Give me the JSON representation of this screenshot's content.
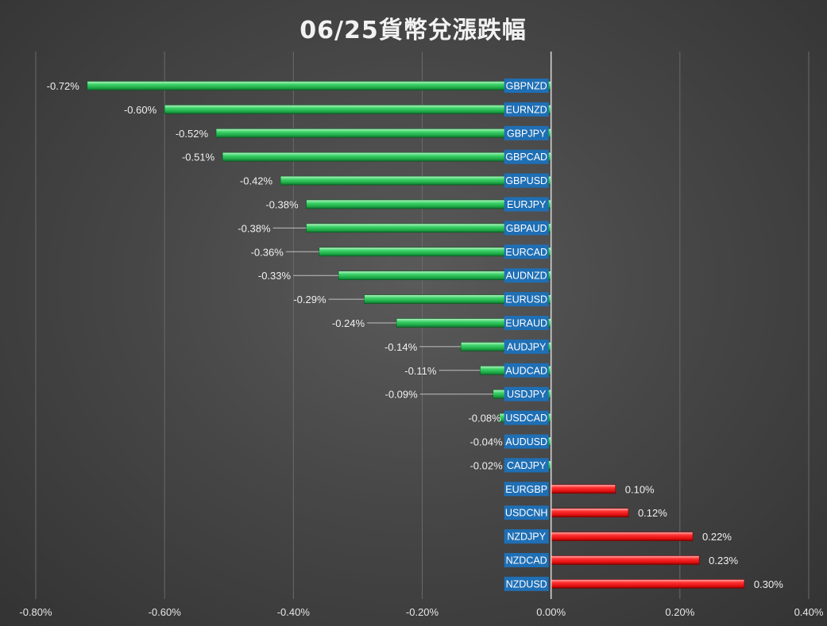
{
  "chart_data": {
    "type": "bar",
    "orientation": "horizontal",
    "title": "06/25貨幣兌漲跌幅",
    "xlim": [
      -0.008,
      0.004
    ],
    "xticks": [
      -0.008,
      -0.006,
      -0.004,
      -0.002,
      0,
      0.002,
      0.004
    ],
    "xtick_labels": [
      "-0.80%",
      "-0.60%",
      "-0.40%",
      "-0.20%",
      "0.00%",
      "0.20%",
      "0.40%"
    ],
    "grid": true,
    "legend": "none",
    "colors": {
      "negative": "#22c55e",
      "positive": "#ef2020"
    },
    "categories": [
      "GBPNZD",
      "EURNZD",
      "GBPJPY",
      "GBPCAD",
      "GBPUSD",
      "EURJPY",
      "GBPAUD",
      "EURCAD",
      "AUDNZD",
      "EURUSD",
      "EURAUD",
      "AUDJPY",
      "AUDCAD",
      "USDJPY",
      "USDCAD",
      "AUDUSD",
      "CADJPY",
      "EURGBP",
      "USDCNH",
      "NZDJPY",
      "NZDCAD",
      "NZDUSD"
    ],
    "values": [
      -0.0072,
      -0.006,
      -0.0052,
      -0.0051,
      -0.0042,
      -0.0038,
      -0.0038,
      -0.0036,
      -0.0033,
      -0.0029,
      -0.0024,
      -0.0014,
      -0.0011,
      -0.0009,
      -0.0008,
      -0.0004,
      -0.0002,
      0.001,
      0.0012,
      0.0022,
      0.0023,
      0.003
    ],
    "value_labels": [
      "-0.72%",
      "-0.60%",
      "-0.52%",
      "-0.51%",
      "-0.42%",
      "-0.38%",
      "-0.38%",
      "-0.36%",
      "-0.33%",
      "-0.29%",
      "-0.24%",
      "-0.14%",
      "-0.11%",
      "-0.09%",
      "-0.08%",
      "-0.04%",
      "-0.02%",
      "0.10%",
      "0.12%",
      "0.22%",
      "0.23%",
      "0.30%"
    ]
  }
}
